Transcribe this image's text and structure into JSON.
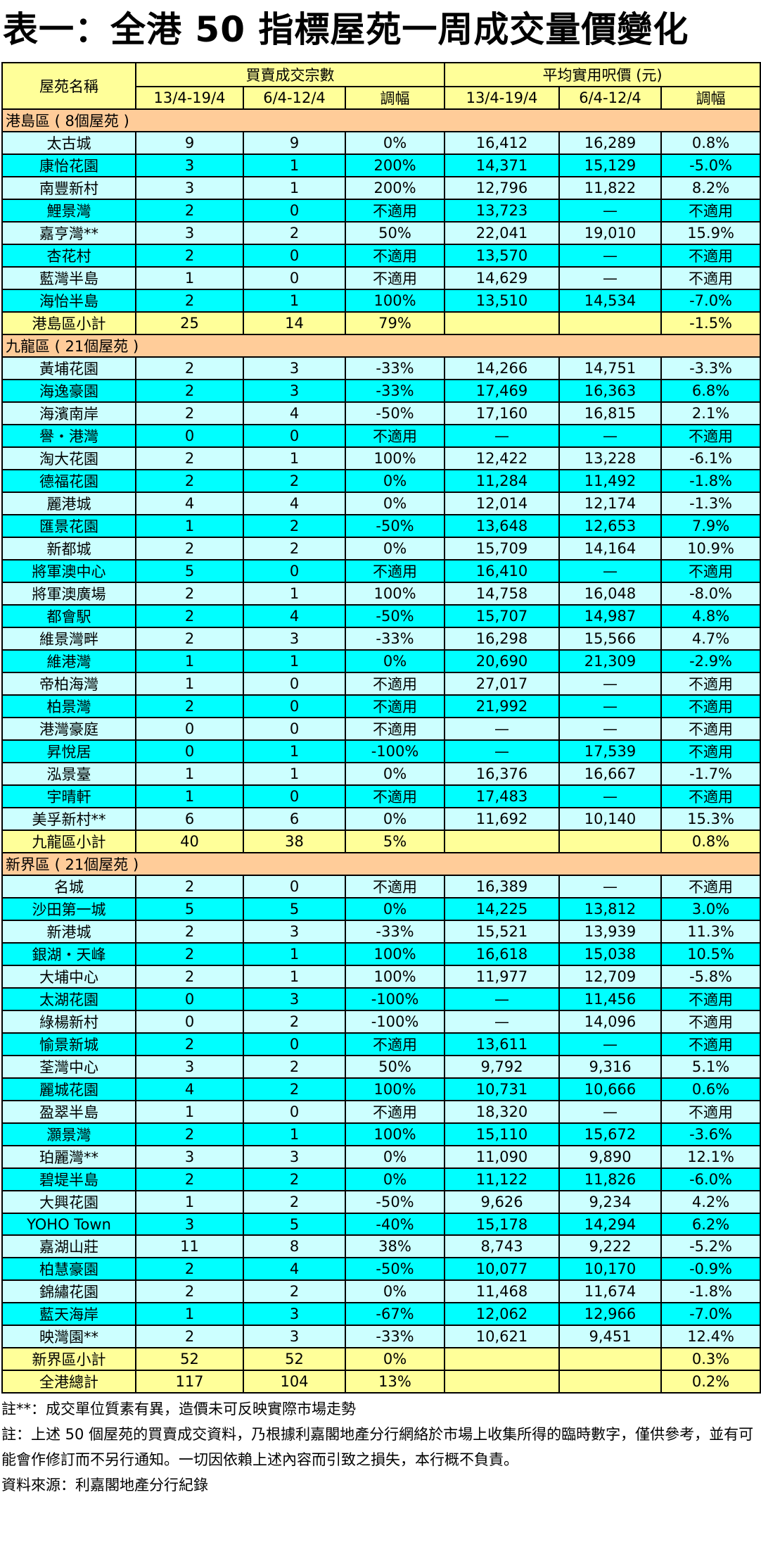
{
  "title": "表一：全港 50 指標屋苑一周成交量價變化",
  "header": {
    "name_col": "屋苑名稱",
    "group_volume": "買賣成交宗數",
    "group_price": "平均實用呎價 (元)",
    "sub_cols": [
      "13/4-19/4",
      "6/4-12/4",
      "調幅",
      "13/4-19/4",
      "6/4-12/4",
      "調幅"
    ]
  },
  "colors": {
    "section": "#FFCC99",
    "subtotal": "#FFFF99",
    "row_light": "#CCFFFF",
    "row_cyan": "#00FFFF",
    "header": "#FFFF99"
  },
  "sections": [
    {
      "label": "港島區 ( 8個屋苑 )",
      "rows": [
        [
          "太古城",
          "9",
          "9",
          "0%",
          "16,412",
          "16,289",
          "0.8%"
        ],
        [
          "康怡花園",
          "3",
          "1",
          "200%",
          "14,371",
          "15,129",
          "-5.0%"
        ],
        [
          "南豐新村",
          "3",
          "1",
          "200%",
          "12,796",
          "11,822",
          "8.2%"
        ],
        [
          "鯉景灣",
          "2",
          "0",
          "不適用",
          "13,723",
          "—",
          "不適用"
        ],
        [
          "嘉亨灣**",
          "3",
          "2",
          "50%",
          "22,041",
          "19,010",
          "15.9%"
        ],
        [
          "杏花村",
          "2",
          "0",
          "不適用",
          "13,570",
          "—",
          "不適用"
        ],
        [
          "藍灣半島",
          "1",
          "0",
          "不適用",
          "14,629",
          "—",
          "不適用"
        ],
        [
          "海怡半島",
          "2",
          "1",
          "100%",
          "13,510",
          "14,534",
          "-7.0%"
        ]
      ],
      "subtotal": [
        "港島區小計",
        "25",
        "14",
        "79%",
        "",
        "",
        "-1.5%"
      ]
    },
    {
      "label": "九龍區 ( 21個屋苑 )",
      "rows": [
        [
          "黃埔花園",
          "2",
          "3",
          "-33%",
          "14,266",
          "14,751",
          "-3.3%"
        ],
        [
          "海逸豪園",
          "2",
          "3",
          "-33%",
          "17,469",
          "16,363",
          "6.8%"
        ],
        [
          "海濱南岸",
          "2",
          "4",
          "-50%",
          "17,160",
          "16,815",
          "2.1%"
        ],
        [
          "譽・港灣",
          "0",
          "0",
          "不適用",
          "—",
          "—",
          "不適用"
        ],
        [
          "淘大花園",
          "2",
          "1",
          "100%",
          "12,422",
          "13,228",
          "-6.1%"
        ],
        [
          "德福花園",
          "2",
          "2",
          "0%",
          "11,284",
          "11,492",
          "-1.8%"
        ],
        [
          "麗港城",
          "4",
          "4",
          "0%",
          "12,014",
          "12,174",
          "-1.3%"
        ],
        [
          "匯景花園",
          "1",
          "2",
          "-50%",
          "13,648",
          "12,653",
          "7.9%"
        ],
        [
          "新都城",
          "2",
          "2",
          "0%",
          "15,709",
          "14,164",
          "10.9%"
        ],
        [
          "將軍澳中心",
          "5",
          "0",
          "不適用",
          "16,410",
          "—",
          "不適用"
        ],
        [
          "將軍澳廣場",
          "2",
          "1",
          "100%",
          "14,758",
          "16,048",
          "-8.0%"
        ],
        [
          "都會駅",
          "2",
          "4",
          "-50%",
          "15,707",
          "14,987",
          "4.8%"
        ],
        [
          "維景灣畔",
          "2",
          "3",
          "-33%",
          "16,298",
          "15,566",
          "4.7%"
        ],
        [
          "維港灣",
          "1",
          "1",
          "0%",
          "20,690",
          "21,309",
          "-2.9%"
        ],
        [
          "帝柏海灣",
          "1",
          "0",
          "不適用",
          "27,017",
          "—",
          "不適用"
        ],
        [
          "柏景灣",
          "2",
          "0",
          "不適用",
          "21,992",
          "—",
          "不適用"
        ],
        [
          "港灣豪庭",
          "0",
          "0",
          "不適用",
          "—",
          "—",
          "不適用"
        ],
        [
          "昇悅居",
          "0",
          "1",
          "-100%",
          "—",
          "17,539",
          "不適用"
        ],
        [
          "泓景臺",
          "1",
          "1",
          "0%",
          "16,376",
          "16,667",
          "-1.7%"
        ],
        [
          "宇晴軒",
          "1",
          "0",
          "不適用",
          "17,483",
          "—",
          "不適用"
        ],
        [
          "美孚新村**",
          "6",
          "6",
          "0%",
          "11,692",
          "10,140",
          "15.3%"
        ]
      ],
      "subtotal": [
        "九龍區小計",
        "40",
        "38",
        "5%",
        "",
        "",
        "0.8%"
      ]
    },
    {
      "label": "新界區 ( 21個屋苑 )",
      "rows": [
        [
          "名城",
          "2",
          "0",
          "不適用",
          "16,389",
          "—",
          "不適用"
        ],
        [
          "沙田第一城",
          "5",
          "5",
          "0%",
          "14,225",
          "13,812",
          "3.0%"
        ],
        [
          "新港城",
          "2",
          "3",
          "-33%",
          "15,521",
          "13,939",
          "11.3%"
        ],
        [
          "銀湖・天峰",
          "2",
          "1",
          "100%",
          "16,618",
          "15,038",
          "10.5%"
        ],
        [
          "大埔中心",
          "2",
          "1",
          "100%",
          "11,977",
          "12,709",
          "-5.8%"
        ],
        [
          "太湖花園",
          "0",
          "3",
          "-100%",
          "—",
          "11,456",
          "不適用"
        ],
        [
          "綠楊新村",
          "0",
          "2",
          "-100%",
          "—",
          "14,096",
          "不適用"
        ],
        [
          "愉景新城",
          "2",
          "0",
          "不適用",
          "13,611",
          "—",
          "不適用"
        ],
        [
          "荃灣中心",
          "3",
          "2",
          "50%",
          "9,792",
          "9,316",
          "5.1%"
        ],
        [
          "麗城花園",
          "4",
          "2",
          "100%",
          "10,731",
          "10,666",
          "0.6%"
        ],
        [
          "盈翠半島",
          "1",
          "0",
          "不適用",
          "18,320",
          "—",
          "不適用"
        ],
        [
          "灝景灣",
          "2",
          "1",
          "100%",
          "15,110",
          "15,672",
          "-3.6%"
        ],
        [
          "珀麗灣**",
          "3",
          "3",
          "0%",
          "11,090",
          "9,890",
          "12.1%"
        ],
        [
          "碧堤半島",
          "2",
          "2",
          "0%",
          "11,122",
          "11,826",
          "-6.0%"
        ],
        [
          "大興花園",
          "1",
          "2",
          "-50%",
          "9,626",
          "9,234",
          "4.2%"
        ],
        [
          "YOHO Town",
          "3",
          "5",
          "-40%",
          "15,178",
          "14,294",
          "6.2%"
        ],
        [
          "嘉湖山莊",
          "11",
          "8",
          "38%",
          "8,743",
          "9,222",
          "-5.2%"
        ],
        [
          "柏慧豪園",
          "2",
          "4",
          "-50%",
          "10,077",
          "10,170",
          "-0.9%"
        ],
        [
          "錦繡花園",
          "2",
          "2",
          "0%",
          "11,468",
          "11,674",
          "-1.8%"
        ],
        [
          "藍天海岸",
          "1",
          "3",
          "-67%",
          "12,062",
          "12,966",
          "-7.0%"
        ],
        [
          "映灣園**",
          "2",
          "3",
          "-33%",
          "10,621",
          "9,451",
          "12.4%"
        ]
      ],
      "subtotal": [
        "新界區小計",
        "52",
        "52",
        "0%",
        "",
        "",
        "0.3%"
      ]
    }
  ],
  "total": [
    "全港總計",
    "117",
    "104",
    "13%",
    "",
    "",
    "0.2%"
  ],
  "notes": [
    "註**：成交單位質素有異，造價未可反映實際市場走勢",
    "註：上述 50 個屋苑的買賣成交資料，乃根據利嘉閣地產分行網絡於市場上收集所得的臨時數字，僅供參考，並有可能會作修訂而不另行通知。一切因依賴上述內容而引致之損失，本行概不負責。",
    "資料來源：利嘉閣地產分行紀錄"
  ]
}
